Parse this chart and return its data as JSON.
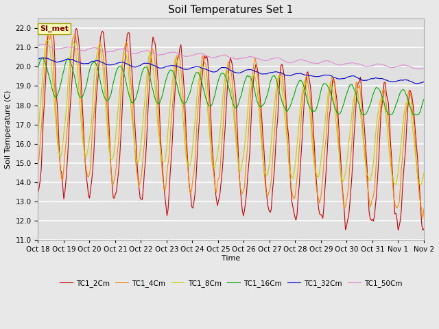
{
  "title": "Soil Temperatures Set 1",
  "xlabel": "Time",
  "ylabel": "Soil Temperature (C)",
  "ylim": [
    11.0,
    22.5
  ],
  "yticks": [
    11.0,
    12.0,
    13.0,
    14.0,
    15.0,
    16.0,
    17.0,
    18.0,
    19.0,
    20.0,
    21.0,
    22.0
  ],
  "x_labels": [
    "Oct 18",
    "Oct 19",
    "Oct 20",
    "Oct 21",
    "Oct 22",
    "Oct 23",
    "Oct 24",
    "Oct 25",
    "Oct 26",
    "Oct 27",
    "Oct 28",
    "Oct 29",
    "Oct 30",
    "Oct 31",
    "Nov 1",
    "Nov 2"
  ],
  "background_color": "#e8e8e8",
  "plot_bg_color": "#e0e0e0",
  "legend_label": "SI_met",
  "series_colors": {
    "TC1_2Cm": "#cc0000",
    "TC1_4Cm": "#ff8800",
    "TC1_8Cm": "#cccc00",
    "TC1_16Cm": "#00aa00",
    "TC1_32Cm": "#0000cc",
    "TC1_50Cm": "#dd88cc"
  },
  "grid_color": "#ffffff",
  "title_fontsize": 11,
  "label_fontsize": 8,
  "tick_fontsize": 7.5,
  "linewidth": 0.8
}
